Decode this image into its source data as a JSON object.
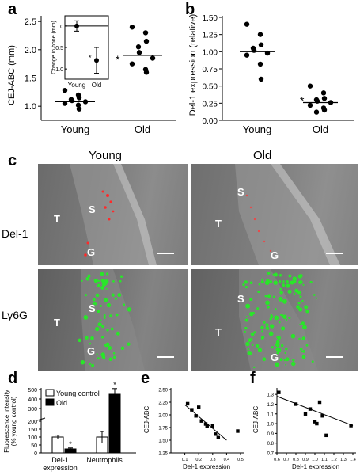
{
  "panels": {
    "a": {
      "letter": "a",
      "chart_data": {
        "type": "scatter",
        "ylabel": "CEJ-ABC (mm)",
        "categories": [
          "Young",
          "Old"
        ],
        "ylim": [
          0.75,
          2.6
        ],
        "yticks": [
          "1.0",
          "1.5",
          "2.0",
          "2.5"
        ],
        "series": [
          {
            "name": "Young",
            "values": [
              1.28,
              1.2,
              1.15,
              1.12,
              1.1,
              1.08,
              1.05,
              1.02,
              0.95
            ],
            "mean": 1.08
          },
          {
            "name": "Old",
            "values": [
              2.4,
              2.3,
              2.15,
              2.05,
              1.95,
              1.85,
              1.75,
              1.65,
              1.6
            ],
            "mean": 1.9
          }
        ],
        "significance": "*",
        "inset": {
          "ylabel": "Change in bone (mm)",
          "categories": [
            "Young",
            "Old"
          ],
          "ylim": [
            -1.2,
            0.2
          ],
          "yticks": [
            "0",
            "-0.5",
            "-1.0"
          ],
          "values": [
            0.0,
            -0.8
          ],
          "errors": [
            0.12,
            0.3
          ],
          "significance": "*"
        }
      }
    },
    "b": {
      "letter": "b",
      "chart_data": {
        "type": "scatter",
        "ylabel": "Del-1 expression (relative)",
        "categories": [
          "Young",
          "Old"
        ],
        "ylim": [
          0.0,
          1.5
        ],
        "yticks": [
          "0.00",
          "0.25",
          "0.50",
          "0.75",
          "1.00",
          "1.25",
          "1.50"
        ],
        "series": [
          {
            "name": "Young",
            "values": [
              1.4,
              1.25,
              1.1,
              1.05,
              1.02,
              0.98,
              0.95,
              0.82,
              0.6
            ],
            "mean": 1.0
          },
          {
            "name": "Old",
            "values": [
              0.5,
              0.4,
              0.32,
              0.3,
              0.28,
              0.26,
              0.22,
              0.18,
              0.15,
              0.12
            ],
            "mean": 0.26
          }
        ],
        "significance": "*"
      }
    },
    "c": {
      "letter": "c",
      "col_titles": [
        "Young",
        "Old"
      ],
      "row_titles": [
        "Del-1",
        "Ly6G"
      ],
      "images": [
        {
          "labels": {
            "t": "T",
            "s": "S",
            "g": "G"
          }
        },
        {
          "labels": {
            "t": "T",
            "s": "S",
            "g": "G"
          }
        },
        {
          "labels": {
            "t": "T",
            "s": "S",
            "g": "G"
          }
        },
        {
          "labels": {
            "t": "T",
            "s": "S",
            "g": "G"
          }
        }
      ]
    },
    "d": {
      "letter": "d",
      "chart_data": {
        "type": "bar",
        "ylabel": "Fluorescence intensity\n(% young control)",
        "legend": [
          "Young control",
          "Old"
        ],
        "legend_colors": [
          "#ffffff",
          "#000000"
        ],
        "categories": [
          "Del-1\nexpression",
          "Neutrophils"
        ],
        "yticks": [
          "0",
          "50",
          "100",
          "150",
          "200",
          "300",
          "400",
          "500"
        ],
        "series": [
          {
            "name": "Young control",
            "values": [
              100,
              100
            ],
            "errors": [
              12,
              35
            ]
          },
          {
            "name": "Old",
            "values": [
              25,
              450
            ],
            "errors": [
              6,
              60
            ]
          }
        ],
        "significance": "*"
      }
    },
    "e": {
      "letter": "e",
      "chart_data": {
        "type": "scatter",
        "xlabel": "Del-1 expression",
        "ylabel": "CEJ-ABC",
        "xlim": [
          0.0,
          0.5
        ],
        "ylim": [
          1.25,
          2.5
        ],
        "xticks": [
          "0.1",
          "0.2",
          "0.3",
          "0.4",
          "0.5"
        ],
        "yticks": [
          "1.25",
          "1.50",
          "1.75",
          "2.00",
          "2.25",
          "2.50"
        ],
        "x": [
          0.12,
          0.15,
          0.18,
          0.2,
          0.22,
          0.25,
          0.26,
          0.3,
          0.32,
          0.34,
          0.48
        ],
        "y": [
          2.22,
          2.1,
          1.98,
          2.15,
          1.88,
          1.82,
          1.78,
          1.78,
          1.62,
          1.55,
          1.68
        ],
        "fit": [
          [
            0.1,
            2.2
          ],
          [
            0.4,
            1.5
          ]
        ]
      }
    },
    "f": {
      "letter": "f",
      "chart_data": {
        "type": "scatter",
        "xlabel": "Del-1 expression",
        "ylabel": "CEJ-ABC",
        "xlim": [
          0.6,
          1.4
        ],
        "ylim": [
          0.7,
          1.35
        ],
        "xticks": [
          "0.6",
          "0.7",
          "0.8",
          "0.9",
          "1.0",
          "1.1",
          "1.2",
          "1.3",
          "1.4"
        ],
        "yticks": [
          "0.7",
          "0.8",
          "0.9",
          "1.0",
          "1.1",
          "1.2",
          "1.3"
        ],
        "x": [
          0.62,
          0.8,
          0.9,
          0.95,
          1.0,
          1.02,
          1.05,
          1.08,
          1.12,
          1.38
        ],
        "y": [
          1.32,
          1.2,
          1.1,
          1.15,
          1.02,
          1.0,
          1.22,
          1.08,
          0.88,
          0.98
        ],
        "fit": [
          [
            0.6,
            1.28
          ],
          [
            1.4,
            0.98
          ]
        ]
      }
    }
  }
}
